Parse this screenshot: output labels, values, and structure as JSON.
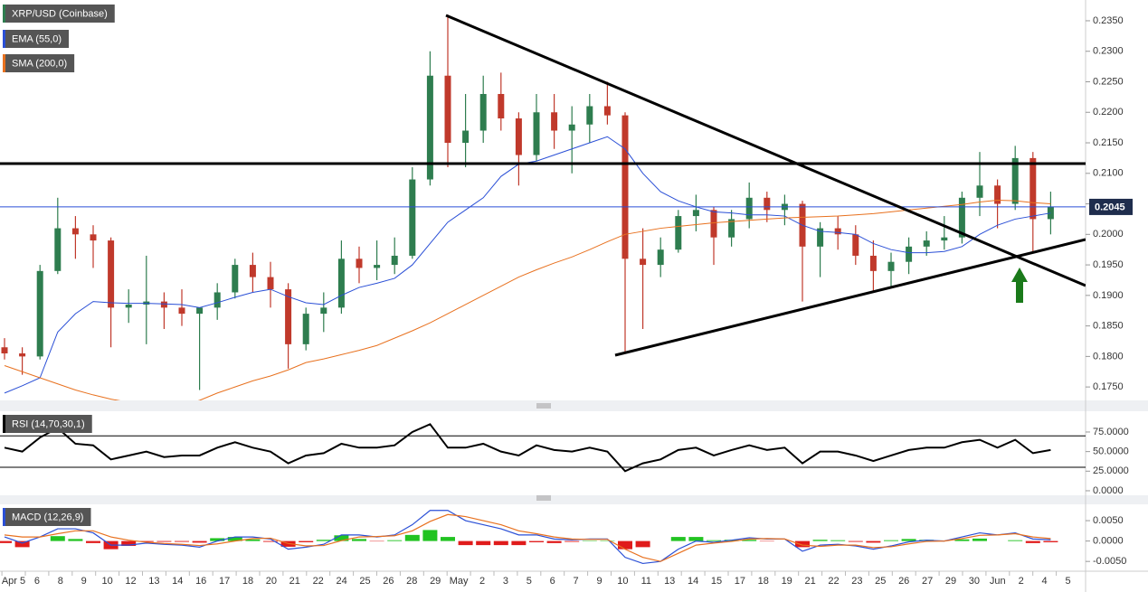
{
  "chart_data": [
    {
      "type": "candlestick",
      "x_labels": [
        "Apr 5",
        "6",
        "8",
        "9",
        "10",
        "12",
        "13",
        "14",
        "16",
        "17",
        "18",
        "20",
        "21",
        "22",
        "24",
        "25",
        "26",
        "28",
        "29",
        "May",
        "2",
        "3",
        "5",
        "6",
        "7",
        "9",
        "10",
        "11",
        "13",
        "14",
        "15",
        "17",
        "18",
        "19",
        "21",
        "22",
        "23",
        "25",
        "26",
        "27",
        "29",
        "30",
        "Jun",
        "2",
        "4",
        "5"
      ],
      "series": [
        {
          "name": "XRP/USD (Coinbase)",
          "up_color": "#2e7d4f",
          "down_color": "#c0392b",
          "open": [
            0.1815,
            0.1805,
            0.18,
            0.194,
            0.201,
            0.2,
            0.199,
            0.188,
            0.1885,
            0.189,
            0.188,
            0.187,
            0.188,
            0.1905,
            0.195,
            0.193,
            0.191,
            0.182,
            0.187,
            0.188,
            0.196,
            0.1945,
            0.195,
            0.1965,
            0.209,
            0.226,
            0.215,
            0.217,
            0.223,
            0.219,
            0.213,
            0.22,
            0.217,
            0.218,
            0.221,
            0.2195,
            0.196,
            0.195,
            0.1975,
            0.203,
            0.204,
            0.1995,
            0.2025,
            0.206,
            0.204,
            0.205,
            0.198,
            0.201,
            0.2,
            0.1965,
            0.194,
            0.1955,
            0.198,
            0.199,
            0.1995,
            0.206,
            0.208,
            0.205,
            0.2125,
            0.2025
          ],
          "high": [
            0.183,
            0.1815,
            0.195,
            0.206,
            0.203,
            0.2015,
            0.1995,
            0.191,
            0.1965,
            0.1905,
            0.191,
            0.188,
            0.192,
            0.196,
            0.197,
            0.1955,
            0.192,
            0.188,
            0.1905,
            0.199,
            0.198,
            0.199,
            0.1995,
            0.211,
            0.23,
            0.236,
            0.223,
            0.226,
            0.2265,
            0.22,
            0.223,
            0.223,
            0.221,
            0.223,
            0.225,
            0.22,
            0.201,
            0.1995,
            0.204,
            0.2065,
            0.2045,
            0.204,
            0.2085,
            0.207,
            0.2065,
            0.2055,
            0.202,
            0.203,
            0.2015,
            0.199,
            0.197,
            0.1995,
            0.2005,
            0.203,
            0.207,
            0.2135,
            0.209,
            0.2145,
            0.2135,
            0.207
          ],
          "low": [
            0.1795,
            0.177,
            0.1795,
            0.1935,
            0.196,
            0.1945,
            0.1815,
            0.1855,
            0.182,
            0.1845,
            0.185,
            0.1745,
            0.186,
            0.1895,
            0.1905,
            0.188,
            0.178,
            0.181,
            0.184,
            0.187,
            0.192,
            0.1925,
            0.1935,
            0.196,
            0.208,
            0.211,
            0.211,
            0.215,
            0.217,
            0.208,
            0.212,
            0.214,
            0.21,
            0.215,
            0.218,
            0.1805,
            0.1845,
            0.193,
            0.197,
            0.2005,
            0.195,
            0.198,
            0.201,
            0.202,
            0.2015,
            0.189,
            0.193,
            0.1975,
            0.195,
            0.1905,
            0.1915,
            0.1935,
            0.1965,
            0.1975,
            0.1985,
            0.203,
            0.201,
            0.204,
            0.197,
            0.2
          ],
          "close": [
            0.1805,
            0.18,
            0.194,
            0.201,
            0.2,
            0.199,
            0.188,
            0.1885,
            0.189,
            0.188,
            0.187,
            0.188,
            0.1905,
            0.195,
            0.193,
            0.191,
            0.182,
            0.187,
            0.188,
            0.196,
            0.1945,
            0.195,
            0.1965,
            0.209,
            0.226,
            0.215,
            0.217,
            0.223,
            0.219,
            0.213,
            0.22,
            0.217,
            0.218,
            0.221,
            0.2195,
            0.196,
            0.195,
            0.1975,
            0.203,
            0.204,
            0.1995,
            0.2025,
            0.206,
            0.204,
            0.205,
            0.198,
            0.201,
            0.2,
            0.1965,
            0.194,
            0.1955,
            0.198,
            0.199,
            0.1995,
            0.206,
            0.208,
            0.205,
            0.2125,
            0.2025,
            0.2045
          ]
        }
      ],
      "overlays": [
        {
          "name": "EMA (55,0)",
          "color": "#2a4fd6",
          "values": [
            0.174,
            0.1752,
            0.1765,
            0.184,
            0.187,
            0.189,
            0.1888,
            0.1887,
            0.1887,
            0.1886,
            0.1885,
            0.188,
            0.1888,
            0.1897,
            0.1905,
            0.191,
            0.1898,
            0.1888,
            0.1885,
            0.19,
            0.1913,
            0.192,
            0.1928,
            0.195,
            0.1985,
            0.202,
            0.204,
            0.206,
            0.2095,
            0.2115,
            0.212,
            0.213,
            0.214,
            0.215,
            0.216,
            0.214,
            0.21,
            0.207,
            0.2055,
            0.2045,
            0.2037,
            0.2035,
            0.2032,
            0.2032,
            0.203,
            0.2015,
            0.2005,
            0.2003,
            0.2,
            0.1985,
            0.1975,
            0.197,
            0.197,
            0.1972,
            0.198,
            0.2,
            0.2015,
            0.2025,
            0.203,
            0.2035
          ]
        },
        {
          "name": "SMA (200,0)",
          "color": "#e8711f",
          "values": [
            0.1785,
            0.1775,
            0.1765,
            0.1755,
            0.1745,
            0.1737,
            0.173,
            0.1725,
            0.1722,
            0.172,
            0.172,
            0.1728,
            0.174,
            0.175,
            0.176,
            0.1768,
            0.1778,
            0.179,
            0.1796,
            0.1803,
            0.181,
            0.1818,
            0.183,
            0.1842,
            0.1855,
            0.187,
            0.1885,
            0.19,
            0.1915,
            0.193,
            0.1942,
            0.1953,
            0.1963,
            0.1975,
            0.1988,
            0.2,
            0.2005,
            0.201,
            0.2013,
            0.2016,
            0.2019,
            0.2021,
            0.2023,
            0.2025,
            0.2027,
            0.2028,
            0.2029,
            0.203,
            0.2032,
            0.2034,
            0.2037,
            0.204,
            0.2043,
            0.2046,
            0.2049,
            0.2053,
            0.2056,
            0.2055,
            0.2052,
            0.205
          ]
        }
      ],
      "last_price": 0.2045,
      "last_price_color": "#1f2d4d",
      "ylim": [
        0.1728,
        0.2384
      ],
      "yticks": [
        {
          "value": 0.175,
          "label": "0.1750"
        },
        {
          "value": 0.18,
          "label": "0.1800"
        },
        {
          "value": 0.185,
          "label": "0.1850"
        },
        {
          "value": 0.19,
          "label": "0.1900"
        },
        {
          "value": 0.195,
          "label": "0.1950"
        },
        {
          "value": 0.2,
          "label": "0.2000"
        },
        {
          "value": 0.205,
          "label": "0.2050"
        },
        {
          "value": 0.21,
          "label": "0.2100"
        },
        {
          "value": 0.215,
          "label": "0.2150"
        },
        {
          "value": 0.22,
          "label": "0.2200"
        },
        {
          "value": 0.225,
          "label": "0.2250"
        },
        {
          "value": 0.23,
          "label": "0.2300"
        },
        {
          "value": 0.235,
          "label": "0.2350"
        }
      ]
    },
    {
      "type": "line",
      "series": [
        {
          "name": "RSI (14,70,30,1)",
          "color": "#000000",
          "values": [
            55,
            50,
            68,
            80,
            60,
            58,
            40,
            45,
            50,
            43,
            45,
            45,
            55,
            62,
            55,
            50,
            35,
            45,
            48,
            60,
            55,
            55,
            58,
            75,
            85,
            55,
            55,
            60,
            50,
            45,
            58,
            52,
            50,
            55,
            50,
            25,
            35,
            40,
            52,
            55,
            45,
            52,
            58,
            52,
            55,
            35,
            50,
            50,
            45,
            38,
            45,
            52,
            55,
            55,
            62,
            65,
            55,
            65,
            48,
            52
          ]
        }
      ],
      "levels": [
        70,
        30
      ],
      "ylim": [
        -5.8,
        101.5
      ],
      "yticks": [
        {
          "value": 0,
          "label": "0.0000"
        },
        {
          "value": 25,
          "label": "25.0000"
        },
        {
          "value": 50,
          "label": "50.0000"
        },
        {
          "value": 75,
          "label": "75.0000"
        }
      ]
    },
    {
      "type": "macd",
      "name": "MACD (12,26,9)",
      "macd": {
        "color": "#2a4fd6",
        "values": [
          0.001,
          -0.0005,
          0.001,
          0.003,
          0.003,
          0.002,
          -0.001,
          -0.001,
          -0.0005,
          -0.0008,
          -0.001,
          -0.0015,
          0,
          0.001,
          0.001,
          0.0005,
          -0.002,
          -0.0015,
          -0.0008,
          0.0015,
          0.0015,
          0.001,
          0.0015,
          0.004,
          0.0075,
          0.0075,
          0.005,
          0.004,
          0.003,
          0.0015,
          0.0015,
          0.0005,
          0.0003,
          0.0005,
          0.0005,
          -0.004,
          -0.0055,
          -0.005,
          -0.002,
          0,
          -0.0003,
          0.0002,
          0.0008,
          0.0005,
          0.0005,
          -0.0025,
          -0.001,
          -0.0008,
          -0.0012,
          -0.002,
          -0.0012,
          -0.0002,
          0.0002,
          0,
          0.001,
          0.002,
          0.0015,
          0.002,
          0.0005,
          0.0003
        ]
      },
      "signal": {
        "color": "#e8711f",
        "values": [
          0.0015,
          0.001,
          0.001,
          0.0018,
          0.0025,
          0.0025,
          0.001,
          0.0002,
          -0.0003,
          -0.0006,
          -0.0008,
          -0.0011,
          -0.0007,
          0,
          0.0006,
          0.0007,
          -0.0006,
          -0.0012,
          -0.0011,
          0.0001,
          0.001,
          0.0011,
          0.0013,
          0.0025,
          0.0048,
          0.0065,
          0.006,
          0.005,
          0.004,
          0.0025,
          0.0018,
          0.001,
          0.0005,
          0.0004,
          0.0004,
          -0.002,
          -0.004,
          -0.005,
          -0.003,
          -0.001,
          -0.0005,
          -0.0001,
          0.0005,
          0.0006,
          0.0005,
          -0.001,
          -0.0013,
          -0.001,
          -0.001,
          -0.0016,
          -0.0014,
          -0.0007,
          -0.0001,
          0,
          0.0006,
          0.0014,
          0.0015,
          0.0018,
          0.001,
          0.0006
        ]
      },
      "histogram": {
        "up_color": "#22c322",
        "down_color": "#e01b1b",
        "values": [
          -0.0005,
          -0.0015,
          0,
          0.0012,
          0.0005,
          -0.0005,
          -0.002,
          -0.0012,
          -0.0002,
          -0.0002,
          -0.0002,
          -0.0004,
          0.0007,
          0.001,
          0.0004,
          -0.0002,
          -0.0014,
          -0.0003,
          0.0003,
          0.0014,
          0.0005,
          -0.0001,
          0.0002,
          0.0015,
          0.0027,
          0.001,
          -0.001,
          -0.001,
          -0.001,
          -0.001,
          -0.0003,
          -0.0005,
          -0.0002,
          0.0001,
          0.0001,
          -0.002,
          -0.0015,
          0,
          0.001,
          0.001,
          0.0002,
          0.0003,
          0.0003,
          -0.0001,
          0,
          -0.0015,
          0.0003,
          0.0002,
          -0.0002,
          -0.0004,
          0.0002,
          0.0005,
          0.0003,
          0,
          0.0004,
          0.0006,
          0,
          0.0002,
          -0.0005,
          -0.0003
        ]
      },
      "ylim": [
        -0.0074,
        0.009
      ],
      "yticks": [
        {
          "value": -0.005,
          "label": "-0.0050"
        },
        {
          "value": 0,
          "label": "0.0000"
        },
        {
          "value": 0.005,
          "label": "0.0050"
        }
      ]
    }
  ]
}
